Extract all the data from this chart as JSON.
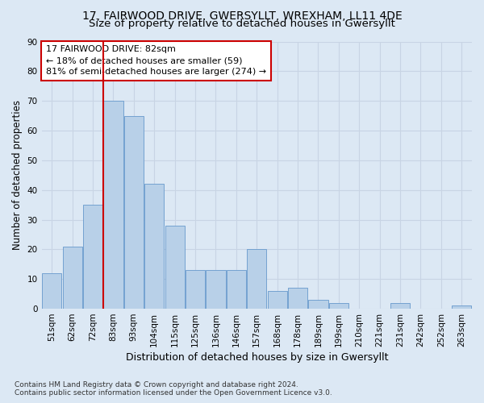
{
  "title1": "17, FAIRWOOD DRIVE, GWERSYLLT, WREXHAM, LL11 4DE",
  "title2": "Size of property relative to detached houses in Gwersyllt",
  "xlabel": "Distribution of detached houses by size in Gwersyllt",
  "ylabel": "Number of detached properties",
  "categories": [
    "51sqm",
    "62sqm",
    "72sqm",
    "83sqm",
    "93sqm",
    "104sqm",
    "115sqm",
    "125sqm",
    "136sqm",
    "146sqm",
    "157sqm",
    "168sqm",
    "178sqm",
    "189sqm",
    "199sqm",
    "210sqm",
    "221sqm",
    "231sqm",
    "242sqm",
    "252sqm",
    "263sqm"
  ],
  "values": [
    12,
    21,
    35,
    70,
    65,
    42,
    28,
    13,
    13,
    13,
    20,
    6,
    7,
    3,
    2,
    0,
    0,
    2,
    0,
    0,
    1
  ],
  "bar_color": "#b8d0e8",
  "bar_edge_color": "#6699cc",
  "vline_x": 2.5,
  "vline_color": "#cc0000",
  "ylim": [
    0,
    90
  ],
  "yticks": [
    0,
    10,
    20,
    30,
    40,
    50,
    60,
    70,
    80,
    90
  ],
  "annotation_title": "17 FAIRWOOD DRIVE: 82sqm",
  "annotation_line1": "← 18% of detached houses are smaller (59)",
  "annotation_line2": "81% of semi-detached houses are larger (274) →",
  "annotation_box_color": "#cc0000",
  "grid_color": "#c8d4e4",
  "bg_color": "#dce8f4",
  "footer1": "Contains HM Land Registry data © Crown copyright and database right 2024.",
  "footer2": "Contains public sector information licensed under the Open Government Licence v3.0.",
  "title1_fontsize": 10,
  "title2_fontsize": 9.5,
  "xlabel_fontsize": 9,
  "ylabel_fontsize": 8.5,
  "tick_fontsize": 7.5,
  "annot_fontsize": 8,
  "footer_fontsize": 6.5
}
